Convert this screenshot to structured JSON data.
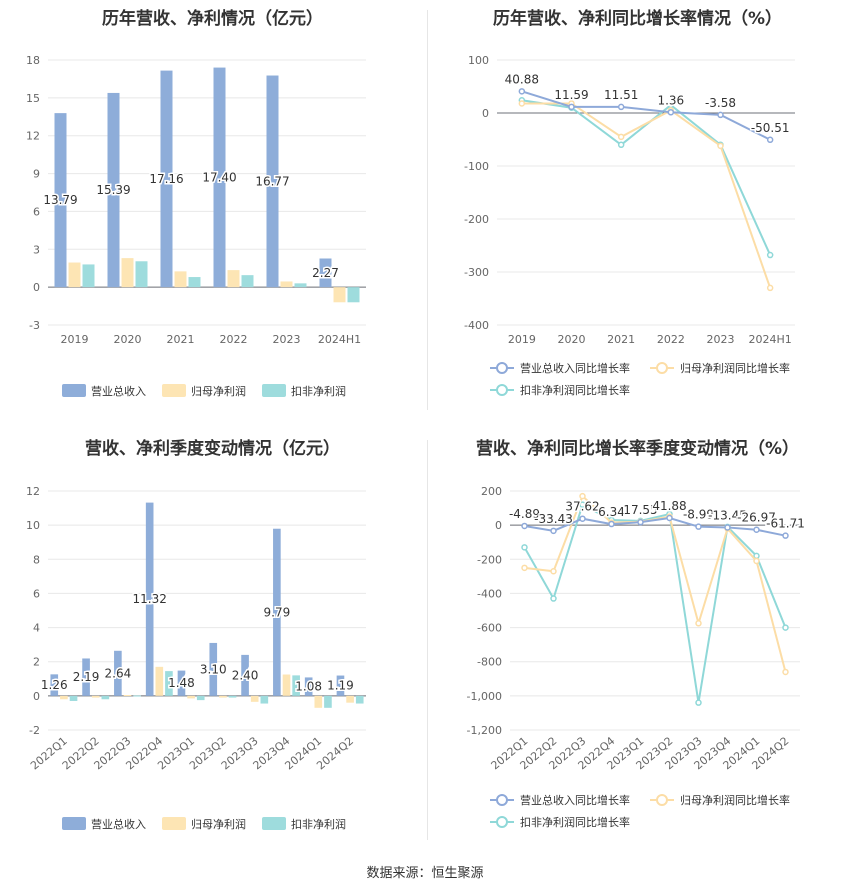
{
  "source": "数据来源：恒生聚源",
  "colors": {
    "rev": "#8eadd9",
    "np": "#fde5b4",
    "dnp": "#9edcdd",
    "revLine": "#8ea9d9",
    "npLine": "#fcdda6",
    "dnpLine": "#8fd8d8"
  },
  "chart_data": [
    {
      "id": "c1",
      "type": "bar",
      "title": "历年营收、净利情况（亿元）",
      "categories": [
        "2019",
        "2020",
        "2021",
        "2022",
        "2023",
        "2024H1"
      ],
      "yticks": [
        -3,
        0,
        3,
        6,
        9,
        12,
        15,
        18
      ],
      "ylim": [
        -3,
        18
      ],
      "series": [
        {
          "name": "营业总收入",
          "values": [
            13.79,
            15.39,
            17.16,
            17.4,
            16.77,
            2.27
          ],
          "labels": [
            "13.79",
            "15.39",
            "17.16",
            "17.40",
            "16.77",
            "2.27"
          ]
        },
        {
          "name": "归母净利润",
          "values": [
            1.95,
            2.3,
            1.25,
            1.35,
            0.45,
            -1.2
          ]
        },
        {
          "name": "扣非净利润",
          "values": [
            1.8,
            2.05,
            0.8,
            0.95,
            0.3,
            -1.2
          ]
        }
      ],
      "legend": "bottom"
    },
    {
      "id": "c2",
      "type": "line",
      "title": "历年营收、净利同比增长率情况（%）",
      "categories": [
        "2019",
        "2020",
        "2021",
        "2022",
        "2023",
        "2024H1"
      ],
      "yticks": [
        -400,
        -300,
        -200,
        -100,
        0,
        100
      ],
      "ylim": [
        -400,
        100
      ],
      "series": [
        {
          "name": "营业总收入同比增长率",
          "values": [
            40.88,
            11.59,
            11.51,
            1.36,
            -3.58,
            -50.51
          ],
          "labels": [
            "40.88",
            "11.59",
            "11.51",
            "1.36",
            "-3.58",
            "-50.51"
          ]
        },
        {
          "name": "归母净利润同比增长率",
          "values": [
            18,
            18,
            -45,
            5,
            -62,
            -330
          ]
        },
        {
          "name": "扣非净利润同比增长率",
          "values": [
            24,
            10,
            -60,
            15,
            -60,
            -268
          ]
        }
      ],
      "legend": "bottom"
    },
    {
      "id": "c3",
      "type": "bar",
      "title": "营收、净利季度变动情况（亿元）",
      "categories": [
        "2022Q1",
        "2022Q2",
        "2022Q3",
        "2022Q4",
        "2023Q1",
        "2023Q2",
        "2023Q3",
        "2023Q4",
        "2024Q1",
        "2024Q2"
      ],
      "yticks": [
        -2,
        0,
        2,
        4,
        6,
        8,
        10,
        12
      ],
      "ylim": [
        -2,
        12
      ],
      "series": [
        {
          "name": "营业总收入",
          "values": [
            1.26,
            2.19,
            2.64,
            11.32,
            1.48,
            3.1,
            2.4,
            9.79,
            1.08,
            1.19
          ],
          "labels": [
            "1.26",
            "2.19",
            "2.64",
            "11.32",
            "1.48",
            "3.10",
            "2.40",
            "9.79",
            "1.08",
            "1.19"
          ]
        },
        {
          "name": "归母净利润",
          "values": [
            -0.2,
            -0.1,
            0.05,
            1.7,
            -0.15,
            -0.1,
            -0.35,
            1.25,
            -0.7,
            -0.4
          ]
        },
        {
          "name": "扣非净利润",
          "values": [
            -0.3,
            -0.2,
            0.02,
            1.45,
            -0.25,
            -0.1,
            -0.45,
            1.2,
            -0.7,
            -0.45
          ]
        }
      ],
      "legend": "bottom"
    },
    {
      "id": "c4",
      "type": "line",
      "title": "营收、净利同比增长率季度变动情况（%）",
      "categories": [
        "2022Q1",
        "2022Q2",
        "2022Q3",
        "2022Q4",
        "2023Q1",
        "2023Q2",
        "2023Q3",
        "2023Q4",
        "2024Q1",
        "2024Q2"
      ],
      "yticks": [
        -1200,
        -1000,
        -800,
        -600,
        -400,
        -200,
        0,
        200
      ],
      "ytickLabels": [
        "-1,200",
        "-1,000",
        "-800",
        "-600",
        "-400",
        "-200",
        "0",
        "200"
      ],
      "ylim": [
        -1200,
        200
      ],
      "series": [
        {
          "name": "营业总收入同比增长率",
          "values": [
            -4.89,
            -33.43,
            37.62,
            6.34,
            17.55,
            41.88,
            -8.99,
            -13.45,
            -26.97,
            -61.71
          ],
          "labels": [
            "-4.89",
            "-33.43",
            "37.62",
            "6.34",
            "17.55",
            "41.88",
            "-8.99",
            "-13.45",
            "-26.97",
            "-61.71"
          ]
        },
        {
          "name": "归母净利润同比增长率",
          "values": [
            -250,
            -270,
            170,
            15,
            20,
            50,
            -575,
            -20,
            -210,
            -860
          ]
        },
        {
          "name": "扣非净利润同比增长率",
          "values": [
            -130,
            -430,
            120,
            30,
            25,
            65,
            -1040,
            -10,
            -180,
            -600
          ]
        }
      ],
      "legend": "bottom"
    }
  ]
}
